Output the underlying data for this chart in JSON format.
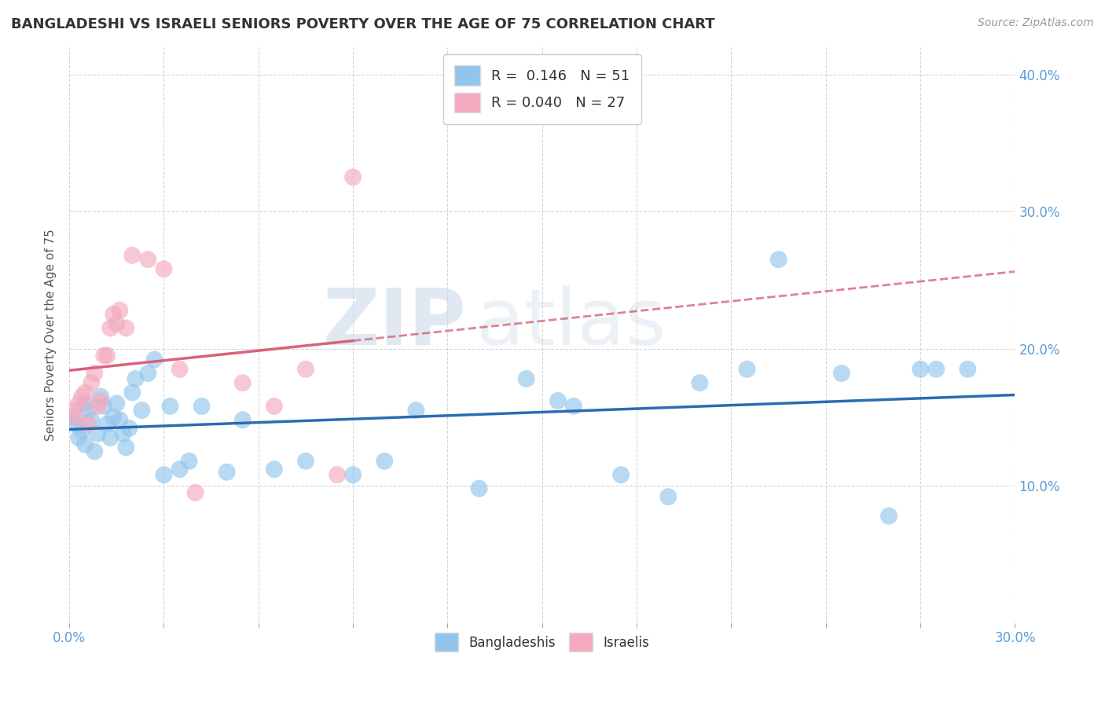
{
  "title": "BANGLADESHI VS ISRAELI SENIORS POVERTY OVER THE AGE OF 75 CORRELATION CHART",
  "source": "Source: ZipAtlas.com",
  "ylabel": "Seniors Poverty Over the Age of 75",
  "xlim": [
    0.0,
    0.3
  ],
  "ylim": [
    0.0,
    0.42
  ],
  "xticks": [
    0.0,
    0.03,
    0.06,
    0.09,
    0.12,
    0.15,
    0.18,
    0.21,
    0.24,
    0.27,
    0.3
  ],
  "xtick_labels_show": [
    "0.0%",
    "",
    "",
    "",
    "",
    "",
    "",
    "",
    "",
    "",
    "30.0%"
  ],
  "yticks": [
    0.1,
    0.2,
    0.3,
    0.4
  ],
  "ytick_labels": [
    "10.0%",
    "20.0%",
    "30.0%",
    "40.0%"
  ],
  "blue_color": "#92C5EC",
  "pink_color": "#F4AABE",
  "blue_line_color": "#2B6CB0",
  "pink_line_color": "#D9627A",
  "watermark_zip": "ZIP",
  "watermark_atlas": "atlas",
  "bangladeshi_x": [
    0.001,
    0.002,
    0.003,
    0.004,
    0.005,
    0.005,
    0.006,
    0.007,
    0.008,
    0.009,
    0.01,
    0.011,
    0.012,
    0.013,
    0.014,
    0.015,
    0.016,
    0.017,
    0.018,
    0.019,
    0.02,
    0.021,
    0.023,
    0.025,
    0.027,
    0.03,
    0.032,
    0.035,
    0.038,
    0.042,
    0.05,
    0.055,
    0.065,
    0.075,
    0.09,
    0.1,
    0.11,
    0.13,
    0.145,
    0.155,
    0.16,
    0.175,
    0.19,
    0.2,
    0.215,
    0.225,
    0.245,
    0.26,
    0.27,
    0.275,
    0.285
  ],
  "bangladeshi_y": [
    0.15,
    0.145,
    0.135,
    0.14,
    0.16,
    0.13,
    0.155,
    0.148,
    0.125,
    0.138,
    0.165,
    0.158,
    0.145,
    0.135,
    0.15,
    0.16,
    0.148,
    0.138,
    0.128,
    0.142,
    0.168,
    0.178,
    0.155,
    0.182,
    0.192,
    0.108,
    0.158,
    0.112,
    0.118,
    0.158,
    0.11,
    0.148,
    0.112,
    0.118,
    0.108,
    0.118,
    0.155,
    0.098,
    0.178,
    0.162,
    0.158,
    0.108,
    0.092,
    0.175,
    0.185,
    0.265,
    0.182,
    0.078,
    0.185,
    0.185,
    0.185
  ],
  "israeli_x": [
    0.001,
    0.002,
    0.003,
    0.004,
    0.005,
    0.006,
    0.007,
    0.008,
    0.009,
    0.01,
    0.011,
    0.012,
    0.013,
    0.014,
    0.015,
    0.016,
    0.018,
    0.02,
    0.025,
    0.03,
    0.035,
    0.04,
    0.055,
    0.065,
    0.075,
    0.085,
    0.09
  ],
  "israeli_y": [
    0.155,
    0.15,
    0.16,
    0.165,
    0.168,
    0.145,
    0.175,
    0.182,
    0.158,
    0.162,
    0.195,
    0.195,
    0.215,
    0.225,
    0.218,
    0.228,
    0.215,
    0.268,
    0.265,
    0.258,
    0.185,
    0.095,
    0.175,
    0.158,
    0.185,
    0.108,
    0.325
  ]
}
